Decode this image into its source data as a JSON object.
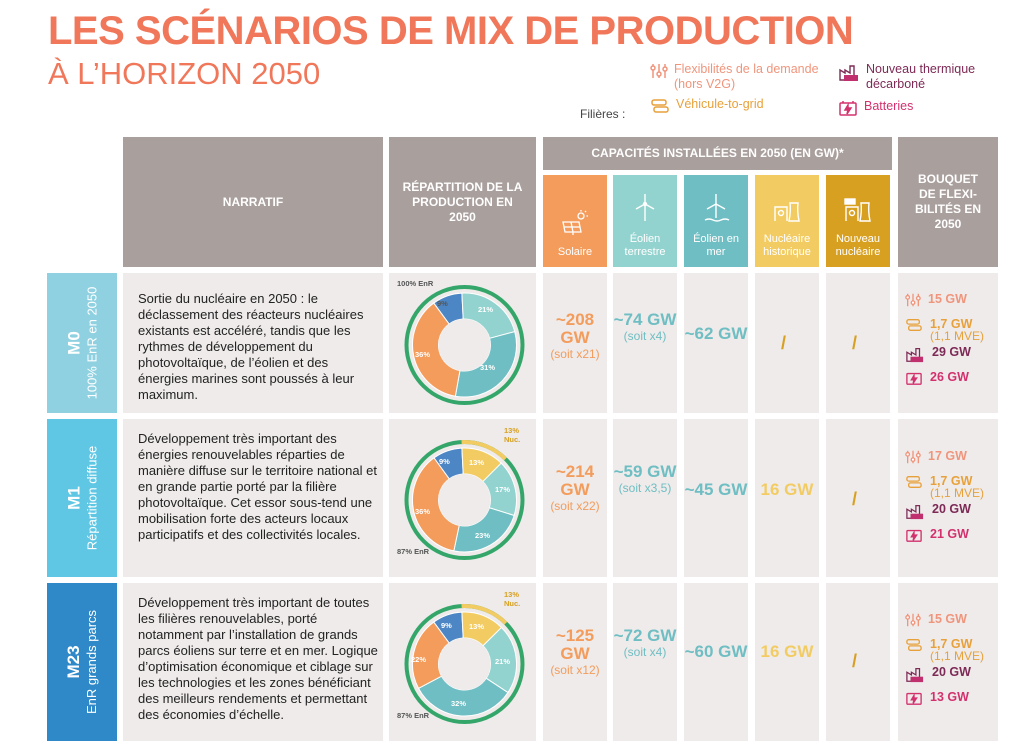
{
  "title": "LES SCÉNARIOS DE MIX DE PRODUCTION",
  "subtitle": "À L’HORIZON 2050",
  "legend": {
    "filieres_label": "Filières :",
    "flex_demand": "Flexibilités de la demande (hors V2G)",
    "v2g": "Véhicule-to-grid",
    "thermal": "Nouveau thermique décarboné",
    "batteries": "Batteries"
  },
  "headers": {
    "narratif": "NARRATIF",
    "repartition": "RÉPARTITION DE LA PRODUCTION EN 2050",
    "capacites": "CAPACITÉS INSTALLÉES EN 2050 (EN GW)*",
    "bouquet": "BOUQUET DE FLEXI-BILITÉS EN 2050",
    "cols": {
      "solaire": "Solaire",
      "eolien_terrestre": "Éolien terrestre",
      "eolien_mer": "Éolien en mer",
      "nucleaire_historique": "Nucléaire historique",
      "nouveau_nucleaire": "Nouveau nucléaire"
    }
  },
  "colors": {
    "title": "#f0775a",
    "solaire": "#f39c5c",
    "eolien_terrestre": "#93d3cf",
    "eolien_mer": "#6fbec3",
    "nucleaire_historique": "#f2cc63",
    "nouveau_nucleaire": "#d8a021",
    "header_grey": "#a99f9d",
    "cell_grey": "#eeebea"
  },
  "scenarios": [
    {
      "code": "M0",
      "label": "100% EnR en 2050",
      "narrative": "Sortie du nucléaire en 2050 : le déclassement des réacteurs nucléaires existants est accéléré, tandis que les rythmes de développement du photovoltaïque, de l’éolien et des énergies marines sont poussés à leur maximum.",
      "enr_label": "100% EnR",
      "nuc_label": "",
      "pcts": {
        "hydro": "9%",
        "eolien_terrestre": "21%",
        "eolien_mer": "31%",
        "solaire": "36%",
        "nucleaire": ""
      },
      "solaire": {
        "value": "~208 GW",
        "eq": "(soit x21)"
      },
      "eolien_terrestre": {
        "value": "~74 GW",
        "eq": "(soit x4)"
      },
      "eolien_mer": {
        "value": "~62 GW"
      },
      "nucleaire_historique": "/",
      "nouveau_nucleaire": "/",
      "flex": {
        "demande": "15 GW",
        "v2g": "1,7 GW",
        "v2g_sub": "(1,1 MVE)",
        "thermique": "29 GW",
        "batteries": "26 GW"
      }
    },
    {
      "code": "M1",
      "label": "Répartition diffuse",
      "narrative": "Développement très important des énergies renouvelables réparties de manière diffuse sur le territoire national et en grande partie porté par la filière photovoltaïque. Cet essor sous-tend une mobilisation forte des acteurs locaux participatifs et des collectivités locales.",
      "enr_label": "87% EnR",
      "nuc_label": "13% Nuc.",
      "pcts": {
        "hydro": "9%",
        "eolien_terrestre": "17%",
        "eolien_mer": "23%",
        "solaire": "36%",
        "nucleaire": "13%"
      },
      "solaire": {
        "value": "~214 GW",
        "eq": "(soit x22)"
      },
      "eolien_terrestre": {
        "value": "~59 GW",
        "eq": "(soit x3,5)"
      },
      "eolien_mer": {
        "value": "~45 GW"
      },
      "nucleaire_historique": "16 GW",
      "nouveau_nucleaire": "/",
      "flex": {
        "demande": "17 GW",
        "v2g": "1,7 GW",
        "v2g_sub": "(1,1 MVE)",
        "thermique": "20 GW",
        "batteries": "21 GW"
      }
    },
    {
      "code": "M23",
      "label": "EnR grands parcs",
      "narrative": "Développement très important de toutes les filières renouvelables, porté notamment par l’installation de grands parcs éoliens sur terre et en mer. Logique d’optimisation économique et ciblage sur les technologies et les zones bénéficiant des meilleurs rendements et permettant des économies d’échelle.",
      "enr_label": "87% EnR",
      "nuc_label": "13% Nuc.",
      "pcts": {
        "hydro": "9%",
        "eolien_terrestre": "21%",
        "eolien_mer": "32%",
        "solaire": "22%",
        "nucleaire": "13%"
      },
      "solaire": {
        "value": "~125 GW",
        "eq": "(soit x12)"
      },
      "eolien_terrestre": {
        "value": "~72 GW",
        "eq": "(soit x4)"
      },
      "eolien_mer": {
        "value": "~60 GW"
      },
      "nucleaire_historique": "16 GW",
      "nouveau_nucleaire": "/",
      "flex": {
        "demande": "15 GW",
        "v2g": "1,7 GW",
        "v2g_sub": "(1,1 MVE)",
        "thermique": "20 GW",
        "batteries": "13 GW"
      }
    }
  ]
}
